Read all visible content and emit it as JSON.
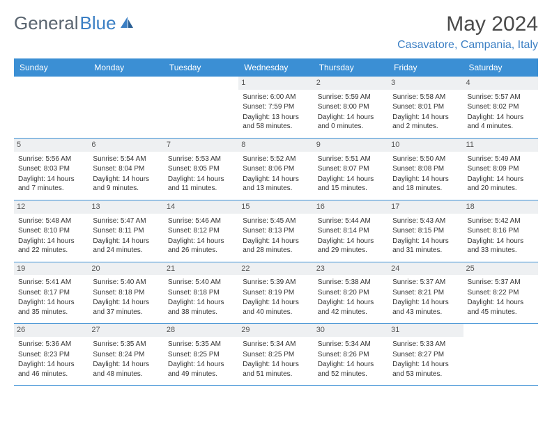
{
  "logo": {
    "text1": "General",
    "text2": "Blue"
  },
  "title": "May 2024",
  "location": "Casavatore, Campania, Italy",
  "headers": [
    "Sunday",
    "Monday",
    "Tuesday",
    "Wednesday",
    "Thursday",
    "Friday",
    "Saturday"
  ],
  "colors": {
    "header_bg": "#3b8fd4",
    "header_text": "#ffffff",
    "day_num_bg": "#eef0f2",
    "brand_gray": "#5a6570",
    "brand_blue": "#3b7fc4",
    "border": "#3b8fd4"
  },
  "weeks": [
    [
      {
        "num": "",
        "sunrise": "",
        "sunset": "",
        "daylight": ""
      },
      {
        "num": "",
        "sunrise": "",
        "sunset": "",
        "daylight": ""
      },
      {
        "num": "",
        "sunrise": "",
        "sunset": "",
        "daylight": ""
      },
      {
        "num": "1",
        "sunrise": "Sunrise: 6:00 AM",
        "sunset": "Sunset: 7:59 PM",
        "daylight": "Daylight: 13 hours and 58 minutes."
      },
      {
        "num": "2",
        "sunrise": "Sunrise: 5:59 AM",
        "sunset": "Sunset: 8:00 PM",
        "daylight": "Daylight: 14 hours and 0 minutes."
      },
      {
        "num": "3",
        "sunrise": "Sunrise: 5:58 AM",
        "sunset": "Sunset: 8:01 PM",
        "daylight": "Daylight: 14 hours and 2 minutes."
      },
      {
        "num": "4",
        "sunrise": "Sunrise: 5:57 AM",
        "sunset": "Sunset: 8:02 PM",
        "daylight": "Daylight: 14 hours and 4 minutes."
      }
    ],
    [
      {
        "num": "5",
        "sunrise": "Sunrise: 5:56 AM",
        "sunset": "Sunset: 8:03 PM",
        "daylight": "Daylight: 14 hours and 7 minutes."
      },
      {
        "num": "6",
        "sunrise": "Sunrise: 5:54 AM",
        "sunset": "Sunset: 8:04 PM",
        "daylight": "Daylight: 14 hours and 9 minutes."
      },
      {
        "num": "7",
        "sunrise": "Sunrise: 5:53 AM",
        "sunset": "Sunset: 8:05 PM",
        "daylight": "Daylight: 14 hours and 11 minutes."
      },
      {
        "num": "8",
        "sunrise": "Sunrise: 5:52 AM",
        "sunset": "Sunset: 8:06 PM",
        "daylight": "Daylight: 14 hours and 13 minutes."
      },
      {
        "num": "9",
        "sunrise": "Sunrise: 5:51 AM",
        "sunset": "Sunset: 8:07 PM",
        "daylight": "Daylight: 14 hours and 15 minutes."
      },
      {
        "num": "10",
        "sunrise": "Sunrise: 5:50 AM",
        "sunset": "Sunset: 8:08 PM",
        "daylight": "Daylight: 14 hours and 18 minutes."
      },
      {
        "num": "11",
        "sunrise": "Sunrise: 5:49 AM",
        "sunset": "Sunset: 8:09 PM",
        "daylight": "Daylight: 14 hours and 20 minutes."
      }
    ],
    [
      {
        "num": "12",
        "sunrise": "Sunrise: 5:48 AM",
        "sunset": "Sunset: 8:10 PM",
        "daylight": "Daylight: 14 hours and 22 minutes."
      },
      {
        "num": "13",
        "sunrise": "Sunrise: 5:47 AM",
        "sunset": "Sunset: 8:11 PM",
        "daylight": "Daylight: 14 hours and 24 minutes."
      },
      {
        "num": "14",
        "sunrise": "Sunrise: 5:46 AM",
        "sunset": "Sunset: 8:12 PM",
        "daylight": "Daylight: 14 hours and 26 minutes."
      },
      {
        "num": "15",
        "sunrise": "Sunrise: 5:45 AM",
        "sunset": "Sunset: 8:13 PM",
        "daylight": "Daylight: 14 hours and 28 minutes."
      },
      {
        "num": "16",
        "sunrise": "Sunrise: 5:44 AM",
        "sunset": "Sunset: 8:14 PM",
        "daylight": "Daylight: 14 hours and 29 minutes."
      },
      {
        "num": "17",
        "sunrise": "Sunrise: 5:43 AM",
        "sunset": "Sunset: 8:15 PM",
        "daylight": "Daylight: 14 hours and 31 minutes."
      },
      {
        "num": "18",
        "sunrise": "Sunrise: 5:42 AM",
        "sunset": "Sunset: 8:16 PM",
        "daylight": "Daylight: 14 hours and 33 minutes."
      }
    ],
    [
      {
        "num": "19",
        "sunrise": "Sunrise: 5:41 AM",
        "sunset": "Sunset: 8:17 PM",
        "daylight": "Daylight: 14 hours and 35 minutes."
      },
      {
        "num": "20",
        "sunrise": "Sunrise: 5:40 AM",
        "sunset": "Sunset: 8:18 PM",
        "daylight": "Daylight: 14 hours and 37 minutes."
      },
      {
        "num": "21",
        "sunrise": "Sunrise: 5:40 AM",
        "sunset": "Sunset: 8:18 PM",
        "daylight": "Daylight: 14 hours and 38 minutes."
      },
      {
        "num": "22",
        "sunrise": "Sunrise: 5:39 AM",
        "sunset": "Sunset: 8:19 PM",
        "daylight": "Daylight: 14 hours and 40 minutes."
      },
      {
        "num": "23",
        "sunrise": "Sunrise: 5:38 AM",
        "sunset": "Sunset: 8:20 PM",
        "daylight": "Daylight: 14 hours and 42 minutes."
      },
      {
        "num": "24",
        "sunrise": "Sunrise: 5:37 AM",
        "sunset": "Sunset: 8:21 PM",
        "daylight": "Daylight: 14 hours and 43 minutes."
      },
      {
        "num": "25",
        "sunrise": "Sunrise: 5:37 AM",
        "sunset": "Sunset: 8:22 PM",
        "daylight": "Daylight: 14 hours and 45 minutes."
      }
    ],
    [
      {
        "num": "26",
        "sunrise": "Sunrise: 5:36 AM",
        "sunset": "Sunset: 8:23 PM",
        "daylight": "Daylight: 14 hours and 46 minutes."
      },
      {
        "num": "27",
        "sunrise": "Sunrise: 5:35 AM",
        "sunset": "Sunset: 8:24 PM",
        "daylight": "Daylight: 14 hours and 48 minutes."
      },
      {
        "num": "28",
        "sunrise": "Sunrise: 5:35 AM",
        "sunset": "Sunset: 8:25 PM",
        "daylight": "Daylight: 14 hours and 49 minutes."
      },
      {
        "num": "29",
        "sunrise": "Sunrise: 5:34 AM",
        "sunset": "Sunset: 8:25 PM",
        "daylight": "Daylight: 14 hours and 51 minutes."
      },
      {
        "num": "30",
        "sunrise": "Sunrise: 5:34 AM",
        "sunset": "Sunset: 8:26 PM",
        "daylight": "Daylight: 14 hours and 52 minutes."
      },
      {
        "num": "31",
        "sunrise": "Sunrise: 5:33 AM",
        "sunset": "Sunset: 8:27 PM",
        "daylight": "Daylight: 14 hours and 53 minutes."
      },
      {
        "num": "",
        "sunrise": "",
        "sunset": "",
        "daylight": ""
      }
    ]
  ]
}
